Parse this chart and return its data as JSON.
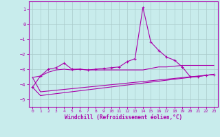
{
  "xlabel": "Windchill (Refroidissement éolien,°C)",
  "background_color": "#c8ecec",
  "grid_color": "#aacccc",
  "line_color": "#aa00aa",
  "xlim": [
    -0.5,
    23.5
  ],
  "ylim": [
    -5.5,
    1.5
  ],
  "yticks": [
    1,
    0,
    -1,
    -2,
    -3,
    -4,
    -5
  ],
  "xticks": [
    0,
    1,
    2,
    3,
    4,
    5,
    6,
    7,
    8,
    9,
    10,
    11,
    12,
    13,
    14,
    15,
    16,
    17,
    18,
    19,
    20,
    21,
    22,
    23
  ],
  "line1_x": [
    0,
    1,
    2,
    3,
    4,
    5,
    6,
    7,
    8,
    9,
    10,
    11,
    12,
    13,
    14,
    15,
    16,
    17,
    18,
    19,
    20,
    21,
    22,
    23
  ],
  "line1_y": [
    -4.2,
    -3.45,
    -3.0,
    -2.9,
    -2.6,
    -3.0,
    -3.0,
    -3.05,
    -3.0,
    -2.95,
    -2.9,
    -2.85,
    -2.5,
    -2.3,
    1.1,
    -1.2,
    -1.75,
    -2.2,
    -2.4,
    -2.85,
    -3.5,
    -3.5,
    -3.4,
    -3.35
  ],
  "line2_x": [
    0,
    1,
    2,
    3,
    4,
    5,
    6,
    7,
    8,
    9,
    10,
    11,
    12,
    13,
    14,
    15,
    16,
    17,
    18,
    19,
    20,
    21,
    22,
    23
  ],
  "line2_y": [
    -3.55,
    -3.45,
    -3.2,
    -3.05,
    -3.0,
    -3.05,
    -3.0,
    -3.05,
    -3.05,
    -3.05,
    -3.05,
    -3.05,
    -3.05,
    -3.05,
    -3.05,
    -2.95,
    -2.85,
    -2.85,
    -2.8,
    -2.75,
    -2.75,
    -2.75,
    -2.75,
    -2.75
  ],
  "line3_x": [
    0,
    1,
    23
  ],
  "line3_y": [
    -4.2,
    -4.75,
    -3.35
  ],
  "line4_x": [
    0,
    1,
    23
  ],
  "line4_y": [
    -3.55,
    -4.5,
    -3.35
  ]
}
